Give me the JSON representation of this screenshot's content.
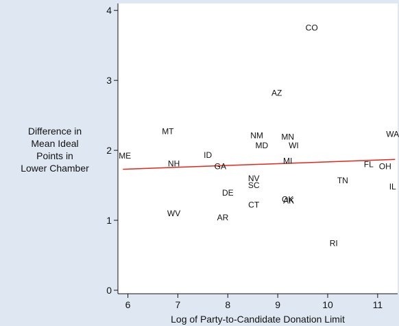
{
  "chart_data": {
    "type": "scatter",
    "xlabel": "Log of Party-to-Candidate Donation Limit",
    "ylabel_lines": [
      "Difference in",
      "Mean Ideal",
      "Points in",
      "Lower Chamber"
    ],
    "xlim": [
      5.8,
      11.4
    ],
    "ylim": [
      -0.05,
      4.1
    ],
    "xticks": [
      6,
      7,
      8,
      9,
      10,
      11
    ],
    "yticks": [
      0,
      1,
      2,
      3,
      4
    ],
    "grid": false,
    "points": [
      {
        "label": "CO",
        "x": 9.68,
        "y": 3.75
      },
      {
        "label": "AZ",
        "x": 8.98,
        "y": 2.82
      },
      {
        "label": "MT",
        "x": 6.8,
        "y": 2.27
      },
      {
        "label": "WA",
        "x": 11.3,
        "y": 2.23
      },
      {
        "label": "NM",
        "x": 8.58,
        "y": 2.21
      },
      {
        "label": "MN",
        "x": 9.2,
        "y": 2.19
      },
      {
        "label": "MD",
        "x": 8.68,
        "y": 2.07
      },
      {
        "label": "WI",
        "x": 9.32,
        "y": 2.07
      },
      {
        "label": "ME",
        "x": 5.94,
        "y": 1.92
      },
      {
        "label": "ID",
        "x": 7.6,
        "y": 1.93
      },
      {
        "label": "MI",
        "x": 9.2,
        "y": 1.85
      },
      {
        "label": "NH",
        "x": 6.92,
        "y": 1.81
      },
      {
        "label": "GA",
        "x": 7.85,
        "y": 1.77
      },
      {
        "label": "FL",
        "x": 10.82,
        "y": 1.8
      },
      {
        "label": "OH",
        "x": 11.15,
        "y": 1.77
      },
      {
        "label": "NV",
        "x": 8.52,
        "y": 1.6
      },
      {
        "label": "TN",
        "x": 10.3,
        "y": 1.57
      },
      {
        "label": "SC",
        "x": 8.52,
        "y": 1.5
      },
      {
        "label": "IL",
        "x": 11.3,
        "y": 1.48
      },
      {
        "label": "DE",
        "x": 8.0,
        "y": 1.39
      },
      {
        "label": "OK",
        "x": 9.2,
        "y": 1.3
      },
      {
        "label": "AK",
        "x": 9.22,
        "y": 1.28
      },
      {
        "label": "CT",
        "x": 8.52,
        "y": 1.22
      },
      {
        "label": "WV",
        "x": 6.92,
        "y": 1.1
      },
      {
        "label": "AR",
        "x": 7.9,
        "y": 1.04
      },
      {
        "label": "RI",
        "x": 10.12,
        "y": 0.67
      }
    ],
    "fit_line": {
      "x": [
        5.9,
        11.35
      ],
      "y": [
        1.73,
        1.87
      ],
      "color": "#e8231a"
    }
  }
}
